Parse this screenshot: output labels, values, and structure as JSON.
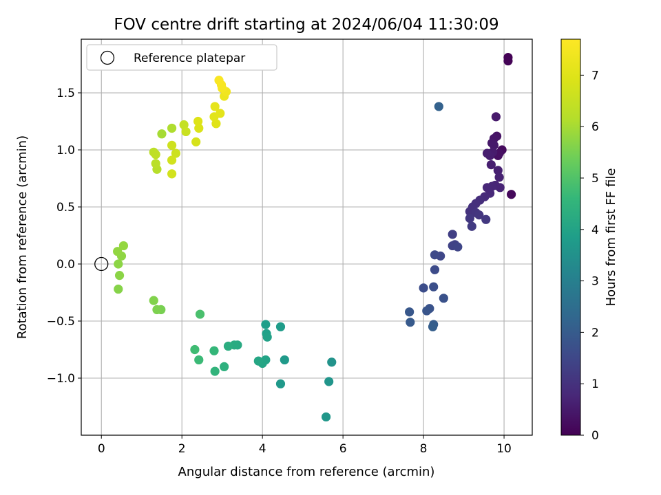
{
  "chart_data": {
    "type": "scatter",
    "title": "FOV centre drift starting at 2024/06/04 11:30:09",
    "xlabel": "Angular distance from reference (arcmin)",
    "ylabel": "Rotation from reference (arcmin)",
    "xlim": [
      -0.5,
      10.7
    ],
    "ylim": [
      -1.5,
      1.97
    ],
    "xticks": [
      0,
      2,
      4,
      6,
      8,
      10
    ],
    "xtick_labels": [
      "0",
      "2",
      "4",
      "6",
      "8",
      "10"
    ],
    "yticks": [
      -1.0,
      -0.5,
      0.0,
      0.5,
      1.0,
      1.5
    ],
    "ytick_labels": [
      "−1.0",
      "−0.5",
      "0.0",
      "0.5",
      "1.0",
      "1.5"
    ],
    "grid": true,
    "legend": {
      "placement": "upper-left",
      "entries": [
        "Reference platepar"
      ]
    },
    "reference_point": {
      "x": 0,
      "y": 0,
      "label": "Reference platepar"
    },
    "colorbar": {
      "label": "Hours from first FF file",
      "colormap": "viridis",
      "range": [
        0,
        7.7
      ],
      "ticks": [
        0,
        1,
        2,
        3,
        4,
        5,
        6,
        7
      ],
      "tick_labels": [
        "0",
        "1",
        "2",
        "3",
        "4",
        "5",
        "6",
        "7"
      ]
    },
    "points": [
      {
        "x": 10.1,
        "y": 1.81,
        "h": 0.02
      },
      {
        "x": 10.1,
        "y": 1.78,
        "h": 0.05
      },
      {
        "x": 10.18,
        "y": 0.61,
        "h": 0.15
      },
      {
        "x": 9.95,
        "y": 1.0,
        "h": 0.2
      },
      {
        "x": 9.85,
        "y": 0.95,
        "h": 0.25
      },
      {
        "x": 9.88,
        "y": 0.97,
        "h": 0.3
      },
      {
        "x": 9.82,
        "y": 1.12,
        "h": 0.35
      },
      {
        "x": 9.75,
        "y": 1.1,
        "h": 0.4
      },
      {
        "x": 9.7,
        "y": 1.06,
        "h": 0.45
      },
      {
        "x": 9.75,
        "y": 1.04,
        "h": 0.48
      },
      {
        "x": 9.8,
        "y": 1.29,
        "h": 0.5
      },
      {
        "x": 9.72,
        "y": 0.98,
        "h": 0.52
      },
      {
        "x": 9.65,
        "y": 0.95,
        "h": 0.55
      },
      {
        "x": 9.58,
        "y": 0.97,
        "h": 0.58
      },
      {
        "x": 9.68,
        "y": 0.87,
        "h": 0.6
      },
      {
        "x": 9.85,
        "y": 0.82,
        "h": 0.62
      },
      {
        "x": 9.88,
        "y": 0.76,
        "h": 0.65
      },
      {
        "x": 9.9,
        "y": 0.67,
        "h": 0.7
      },
      {
        "x": 9.78,
        "y": 0.69,
        "h": 0.72
      },
      {
        "x": 9.7,
        "y": 0.68,
        "h": 0.75
      },
      {
        "x": 9.58,
        "y": 0.67,
        "h": 0.78
      },
      {
        "x": 9.65,
        "y": 0.62,
        "h": 0.8
      },
      {
        "x": 9.52,
        "y": 0.59,
        "h": 0.85
      },
      {
        "x": 9.4,
        "y": 0.56,
        "h": 0.9
      },
      {
        "x": 9.3,
        "y": 0.53,
        "h": 0.95
      },
      {
        "x": 9.22,
        "y": 0.5,
        "h": 0.98
      },
      {
        "x": 9.15,
        "y": 0.46,
        "h": 1.0
      },
      {
        "x": 9.3,
        "y": 0.45,
        "h": 1.05
      },
      {
        "x": 9.38,
        "y": 0.43,
        "h": 1.1
      },
      {
        "x": 9.15,
        "y": 0.4,
        "h": 1.12
      },
      {
        "x": 9.55,
        "y": 0.39,
        "h": 1.15
      },
      {
        "x": 9.2,
        "y": 0.33,
        "h": 1.2
      },
      {
        "x": 8.72,
        "y": 0.26,
        "h": 1.3
      },
      {
        "x": 8.78,
        "y": 0.17,
        "h": 1.35
      },
      {
        "x": 8.72,
        "y": 0.16,
        "h": 1.4
      },
      {
        "x": 8.85,
        "y": 0.15,
        "h": 1.45
      },
      {
        "x": 8.42,
        "y": 0.07,
        "h": 1.5
      },
      {
        "x": 8.28,
        "y": 0.08,
        "h": 1.55
      },
      {
        "x": 8.28,
        "y": -0.05,
        "h": 1.6
      },
      {
        "x": 8.0,
        "y": -0.21,
        "h": 1.65
      },
      {
        "x": 8.25,
        "y": -0.2,
        "h": 1.7
      },
      {
        "x": 8.5,
        "y": -0.3,
        "h": 1.75
      },
      {
        "x": 8.15,
        "y": -0.39,
        "h": 1.8
      },
      {
        "x": 8.08,
        "y": -0.41,
        "h": 1.85
      },
      {
        "x": 7.65,
        "y": -0.42,
        "h": 1.9
      },
      {
        "x": 7.67,
        "y": -0.51,
        "h": 1.95
      },
      {
        "x": 8.25,
        "y": -0.53,
        "h": 2.0
      },
      {
        "x": 8.23,
        "y": -0.55,
        "h": 2.05
      },
      {
        "x": 8.38,
        "y": 1.38,
        "h": 2.15
      },
      {
        "x": 5.72,
        "y": -0.86,
        "h": 3.55
      },
      {
        "x": 5.65,
        "y": -1.03,
        "h": 3.6
      },
      {
        "x": 5.58,
        "y": -1.34,
        "h": 3.65
      },
      {
        "x": 4.45,
        "y": -1.05,
        "h": 3.7
      },
      {
        "x": 4.55,
        "y": -0.84,
        "h": 3.75
      },
      {
        "x": 4.45,
        "y": -0.55,
        "h": 3.8
      },
      {
        "x": 4.08,
        "y": -0.53,
        "h": 3.85
      },
      {
        "x": 4.1,
        "y": -0.61,
        "h": 3.9
      },
      {
        "x": 4.12,
        "y": -0.64,
        "h": 3.95
      },
      {
        "x": 4.08,
        "y": -0.84,
        "h": 4.0
      },
      {
        "x": 4.0,
        "y": -0.87,
        "h": 4.05
      },
      {
        "x": 3.9,
        "y": -0.85,
        "h": 4.1
      },
      {
        "x": 3.38,
        "y": -0.71,
        "h": 4.2
      },
      {
        "x": 3.3,
        "y": -0.71,
        "h": 4.25
      },
      {
        "x": 3.15,
        "y": -0.72,
        "h": 4.3
      },
      {
        "x": 3.05,
        "y": -0.9,
        "h": 4.4
      },
      {
        "x": 2.82,
        "y": -0.94,
        "h": 4.5
      },
      {
        "x": 2.8,
        "y": -0.76,
        "h": 4.6
      },
      {
        "x": 2.42,
        "y": -0.84,
        "h": 4.7
      },
      {
        "x": 2.32,
        "y": -0.75,
        "h": 4.75
      },
      {
        "x": 2.45,
        "y": -0.44,
        "h": 4.9
      },
      {
        "x": 1.48,
        "y": -0.4,
        "h": 5.5
      },
      {
        "x": 1.38,
        "y": -0.4,
        "h": 5.55
      },
      {
        "x": 1.3,
        "y": -0.32,
        "h": 5.6
      },
      {
        "x": 0.42,
        "y": -0.22,
        "h": 5.65
      },
      {
        "x": 0.45,
        "y": -0.1,
        "h": 5.7
      },
      {
        "x": 0.42,
        "y": 0.0,
        "h": 5.72
      },
      {
        "x": 0.5,
        "y": 0.07,
        "h": 5.75
      },
      {
        "x": 0.4,
        "y": 0.11,
        "h": 5.78
      },
      {
        "x": 0.55,
        "y": 0.16,
        "h": 5.8
      },
      {
        "x": 1.5,
        "y": 1.14,
        "h": 6.0
      },
      {
        "x": 1.75,
        "y": 1.19,
        "h": 6.1
      },
      {
        "x": 1.38,
        "y": 0.83,
        "h": 6.2
      },
      {
        "x": 1.35,
        "y": 0.88,
        "h": 6.25
      },
      {
        "x": 1.3,
        "y": 0.98,
        "h": 6.3
      },
      {
        "x": 1.35,
        "y": 0.96,
        "h": 6.35
      },
      {
        "x": 2.05,
        "y": 1.22,
        "h": 6.45
      },
      {
        "x": 2.1,
        "y": 1.16,
        "h": 6.55
      },
      {
        "x": 1.85,
        "y": 0.97,
        "h": 6.6
      },
      {
        "x": 1.75,
        "y": 1.04,
        "h": 6.65
      },
      {
        "x": 1.75,
        "y": 0.91,
        "h": 6.7
      },
      {
        "x": 1.75,
        "y": 0.79,
        "h": 6.72
      },
      {
        "x": 2.35,
        "y": 1.07,
        "h": 6.8
      },
      {
        "x": 2.42,
        "y": 1.19,
        "h": 6.9
      },
      {
        "x": 2.4,
        "y": 1.25,
        "h": 6.95
      },
      {
        "x": 2.85,
        "y": 1.23,
        "h": 7.0
      },
      {
        "x": 2.8,
        "y": 1.29,
        "h": 7.05
      },
      {
        "x": 2.95,
        "y": 1.32,
        "h": 7.1
      },
      {
        "x": 2.82,
        "y": 1.38,
        "h": 7.15
      },
      {
        "x": 3.05,
        "y": 1.47,
        "h": 7.3
      },
      {
        "x": 3.1,
        "y": 1.51,
        "h": 7.4
      },
      {
        "x": 3.0,
        "y": 1.54,
        "h": 7.5
      },
      {
        "x": 2.98,
        "y": 1.57,
        "h": 7.55
      },
      {
        "x": 2.92,
        "y": 1.61,
        "h": 7.6
      }
    ]
  }
}
